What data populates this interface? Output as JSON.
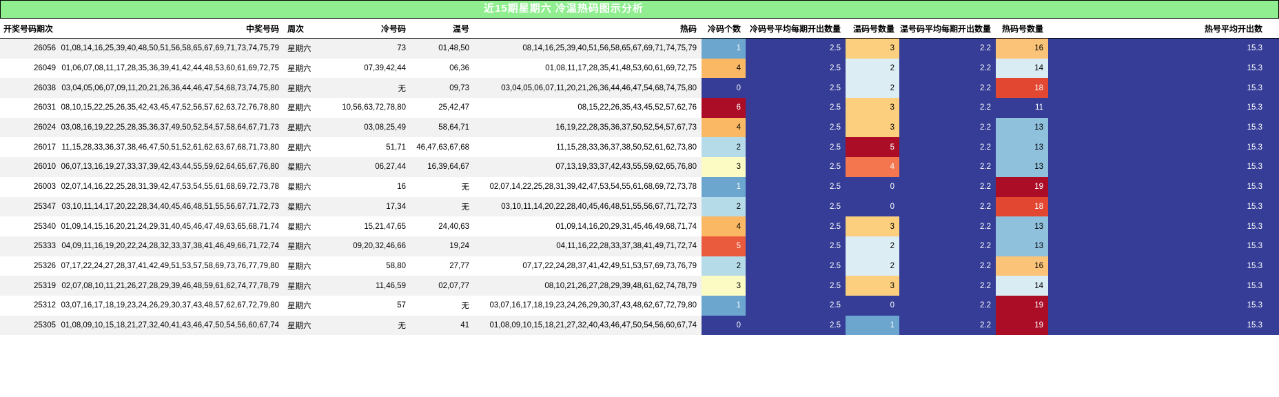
{
  "title": "近15期星期六 冷温热码图示分析",
  "colors": {
    "title_bg": "#90EE90",
    "title_text": "#FFFFFF",
    "const_cell_bg": "#353D96",
    "stripe_gray": "#F2F2F2",
    "row_white": "#FFFFFF",
    "scales": {
      "cold_count": {
        "0": "#353D96",
        "1": "#6CA6CF",
        "2": "#B5DBE9",
        "3": "#FBFBC3",
        "4": "#FAB865",
        "5": "#EA5A3C",
        "6": "#AB0D26"
      },
      "warm_count": {
        "0": "#353D96",
        "1": "#6CA6CF",
        "2": "#DCEDF4",
        "3": "#FBCF7E",
        "4": "#F4764E",
        "5": "#AB0D26"
      },
      "hot_count": {
        "11": "#353D96",
        "13": "#8FC0DC",
        "14": "#D9EBF3",
        "16": "#FAC377",
        "18": "#E24731",
        "19": "#AB0D26"
      }
    }
  },
  "chart_data": {
    "type": "table",
    "subtype": "heatmap-conditional-formatting",
    "title": "近15期星期六 冷温热码图示分析",
    "columns": [
      "开奖号码期次",
      "中奖号码",
      "周次",
      "冷号码",
      "温号",
      "热码",
      "冷码个数",
      "冷码号平均每期开出数量",
      "温码号数量",
      "温号码平均每期开出数量",
      "热码号数量",
      "热号平均开出数"
    ],
    "rows": [
      {
        "period": "26056",
        "winning": "01,08,14,16,25,39,40,48,50,51,56,58,65,67,69,71,73,74,75,79",
        "week": "星期六",
        "cold": "73",
        "warm": "01,48,50",
        "hot": "08,14,16,25,39,40,51,56,58,65,67,69,71,74,75,79",
        "cold_count": "1",
        "cold_avg": "2.5",
        "warm_count": "3",
        "warm_avg": "2.2",
        "hot_count": "16",
        "hot_avg": "15.3"
      },
      {
        "period": "26049",
        "winning": "01,06,07,08,11,17,28,35,36,39,41,42,44,48,53,60,61,69,72,75",
        "week": "星期六",
        "cold": "07,39,42,44",
        "warm": "06,36",
        "hot": "01,08,11,17,28,35,41,48,53,60,61,69,72,75",
        "cold_count": "4",
        "cold_avg": "2.5",
        "warm_count": "2",
        "warm_avg": "2.2",
        "hot_count": "14",
        "hot_avg": "15.3"
      },
      {
        "period": "26038",
        "winning": "03,04,05,06,07,09,11,20,21,26,36,44,46,47,54,68,73,74,75,80",
        "week": "星期六",
        "cold": "无",
        "warm": "09,73",
        "hot": "03,04,05,06,07,11,20,21,26,36,44,46,47,54,68,74,75,80",
        "cold_count": "0",
        "cold_avg": "2.5",
        "warm_count": "2",
        "warm_avg": "2.2",
        "hot_count": "18",
        "hot_avg": "15.3"
      },
      {
        "period": "26031",
        "winning": "08,10,15,22,25,26,35,42,43,45,47,52,56,57,62,63,72,76,78,80",
        "week": "星期六",
        "cold": "10,56,63,72,78,80",
        "warm": "25,42,47",
        "hot": "08,15,22,26,35,43,45,52,57,62,76",
        "cold_count": "6",
        "cold_avg": "2.5",
        "warm_count": "3",
        "warm_avg": "2.2",
        "hot_count": "11",
        "hot_avg": "15.3"
      },
      {
        "period": "26024",
        "winning": "03,08,16,19,22,25,28,35,36,37,49,50,52,54,57,58,64,67,71,73",
        "week": "星期六",
        "cold": "03,08,25,49",
        "warm": "58,64,71",
        "hot": "16,19,22,28,35,36,37,50,52,54,57,67,73",
        "cold_count": "4",
        "cold_avg": "2.5",
        "warm_count": "3",
        "warm_avg": "2.2",
        "hot_count": "13",
        "hot_avg": "15.3"
      },
      {
        "period": "26017",
        "winning": "11,15,28,33,36,37,38,46,47,50,51,52,61,62,63,67,68,71,73,80",
        "week": "星期六",
        "cold": "51,71",
        "warm": "46,47,63,67,68",
        "hot": "11,15,28,33,36,37,38,50,52,61,62,73,80",
        "cold_count": "2",
        "cold_avg": "2.5",
        "warm_count": "5",
        "warm_avg": "2.2",
        "hot_count": "13",
        "hot_avg": "15.3"
      },
      {
        "period": "26010",
        "winning": "06,07,13,16,19,27,33,37,39,42,43,44,55,59,62,64,65,67,76,80",
        "week": "星期六",
        "cold": "06,27,44",
        "warm": "16,39,64,67",
        "hot": "07,13,19,33,37,42,43,55,59,62,65,76,80",
        "cold_count": "3",
        "cold_avg": "2.5",
        "warm_count": "4",
        "warm_avg": "2.2",
        "hot_count": "13",
        "hot_avg": "15.3"
      },
      {
        "period": "26003",
        "winning": "02,07,14,16,22,25,28,31,39,42,47,53,54,55,61,68,69,72,73,78",
        "week": "星期六",
        "cold": "16",
        "warm": "无",
        "hot": "02,07,14,22,25,28,31,39,42,47,53,54,55,61,68,69,72,73,78",
        "cold_count": "1",
        "cold_avg": "2.5",
        "warm_count": "0",
        "warm_avg": "2.2",
        "hot_count": "19",
        "hot_avg": "15.3"
      },
      {
        "period": "25347",
        "winning": "03,10,11,14,17,20,22,28,34,40,45,46,48,51,55,56,67,71,72,73",
        "week": "星期六",
        "cold": "17,34",
        "warm": "无",
        "hot": "03,10,11,14,20,22,28,40,45,46,48,51,55,56,67,71,72,73",
        "cold_count": "2",
        "cold_avg": "2.5",
        "warm_count": "0",
        "warm_avg": "2.2",
        "hot_count": "18",
        "hot_avg": "15.3"
      },
      {
        "period": "25340",
        "winning": "01,09,14,15,16,20,21,24,29,31,40,45,46,47,49,63,65,68,71,74",
        "week": "星期六",
        "cold": "15,21,47,65",
        "warm": "24,40,63",
        "hot": "01,09,14,16,20,29,31,45,46,49,68,71,74",
        "cold_count": "4",
        "cold_avg": "2.5",
        "warm_count": "3",
        "warm_avg": "2.2",
        "hot_count": "13",
        "hot_avg": "15.3"
      },
      {
        "period": "25333",
        "winning": "04,09,11,16,19,20,22,24,28,32,33,37,38,41,46,49,66,71,72,74",
        "week": "星期六",
        "cold": "09,20,32,46,66",
        "warm": "19,24",
        "hot": "04,11,16,22,28,33,37,38,41,49,71,72,74",
        "cold_count": "5",
        "cold_avg": "2.5",
        "warm_count": "2",
        "warm_avg": "2.2",
        "hot_count": "13",
        "hot_avg": "15.3"
      },
      {
        "period": "25326",
        "winning": "07,17,22,24,27,28,37,41,42,49,51,53,57,58,69,73,76,77,79,80",
        "week": "星期六",
        "cold": "58,80",
        "warm": "27,77",
        "hot": "07,17,22,24,28,37,41,42,49,51,53,57,69,73,76,79",
        "cold_count": "2",
        "cold_avg": "2.5",
        "warm_count": "2",
        "warm_avg": "2.2",
        "hot_count": "16",
        "hot_avg": "15.3"
      },
      {
        "period": "25319",
        "winning": "02,07,08,10,11,21,26,27,28,29,39,46,48,59,61,62,74,77,78,79",
        "week": "星期六",
        "cold": "11,46,59",
        "warm": "02,07,77",
        "hot": "08,10,21,26,27,28,29,39,48,61,62,74,78,79",
        "cold_count": "3",
        "cold_avg": "2.5",
        "warm_count": "3",
        "warm_avg": "2.2",
        "hot_count": "14",
        "hot_avg": "15.3"
      },
      {
        "period": "25312",
        "winning": "03,07,16,17,18,19,23,24,26,29,30,37,43,48,57,62,67,72,79,80",
        "week": "星期六",
        "cold": "57",
        "warm": "无",
        "hot": "03,07,16,17,18,19,23,24,26,29,30,37,43,48,62,67,72,79,80",
        "cold_count": "1",
        "cold_avg": "2.5",
        "warm_count": "0",
        "warm_avg": "2.2",
        "hot_count": "19",
        "hot_avg": "15.3"
      },
      {
        "period": "25305",
        "winning": "01,08,09,10,15,18,21,27,32,40,41,43,46,47,50,54,56,60,67,74",
        "week": "星期六",
        "cold": "无",
        "warm": "41",
        "hot": "01,08,09,10,15,18,21,27,32,40,43,46,47,50,54,56,60,67,74",
        "cold_count": "0",
        "cold_avg": "2.5",
        "warm_count": "1",
        "warm_avg": "2.2",
        "hot_count": "19",
        "hot_avg": "15.3"
      }
    ]
  }
}
